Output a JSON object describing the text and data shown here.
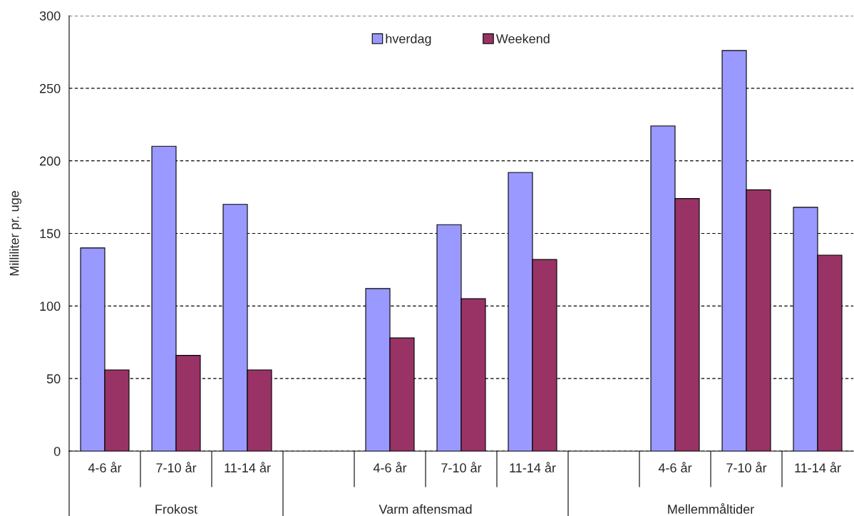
{
  "chart_data": {
    "type": "bar",
    "categories": [
      "4-6 år",
      "7-10 år",
      "11-14 år",
      null,
      "4-6 år",
      "7-10 år",
      "11-14 år",
      null,
      "4-6 år",
      "7-10 år",
      "11-14 år"
    ],
    "series": [
      {
        "name": "hverdag",
        "color": "#9999ff",
        "values": [
          140,
          210,
          170,
          null,
          112,
          156,
          192,
          null,
          224,
          276,
          168
        ]
      },
      {
        "name": "Weekend",
        "color": "#993366",
        "values": [
          56,
          66,
          56,
          null,
          78,
          105,
          132,
          null,
          174,
          180,
          135
        ]
      }
    ],
    "ylabel": "Milliliter pr. uge",
    "annotations": [
      "Frokost",
      "Varm aftensmad",
      "Mellemmåltider"
    ],
    "ylim": [
      0,
      300
    ],
    "yticks": [
      0,
      50,
      100,
      150,
      200,
      250,
      300
    ],
    "grid": "y",
    "legend": "top"
  }
}
